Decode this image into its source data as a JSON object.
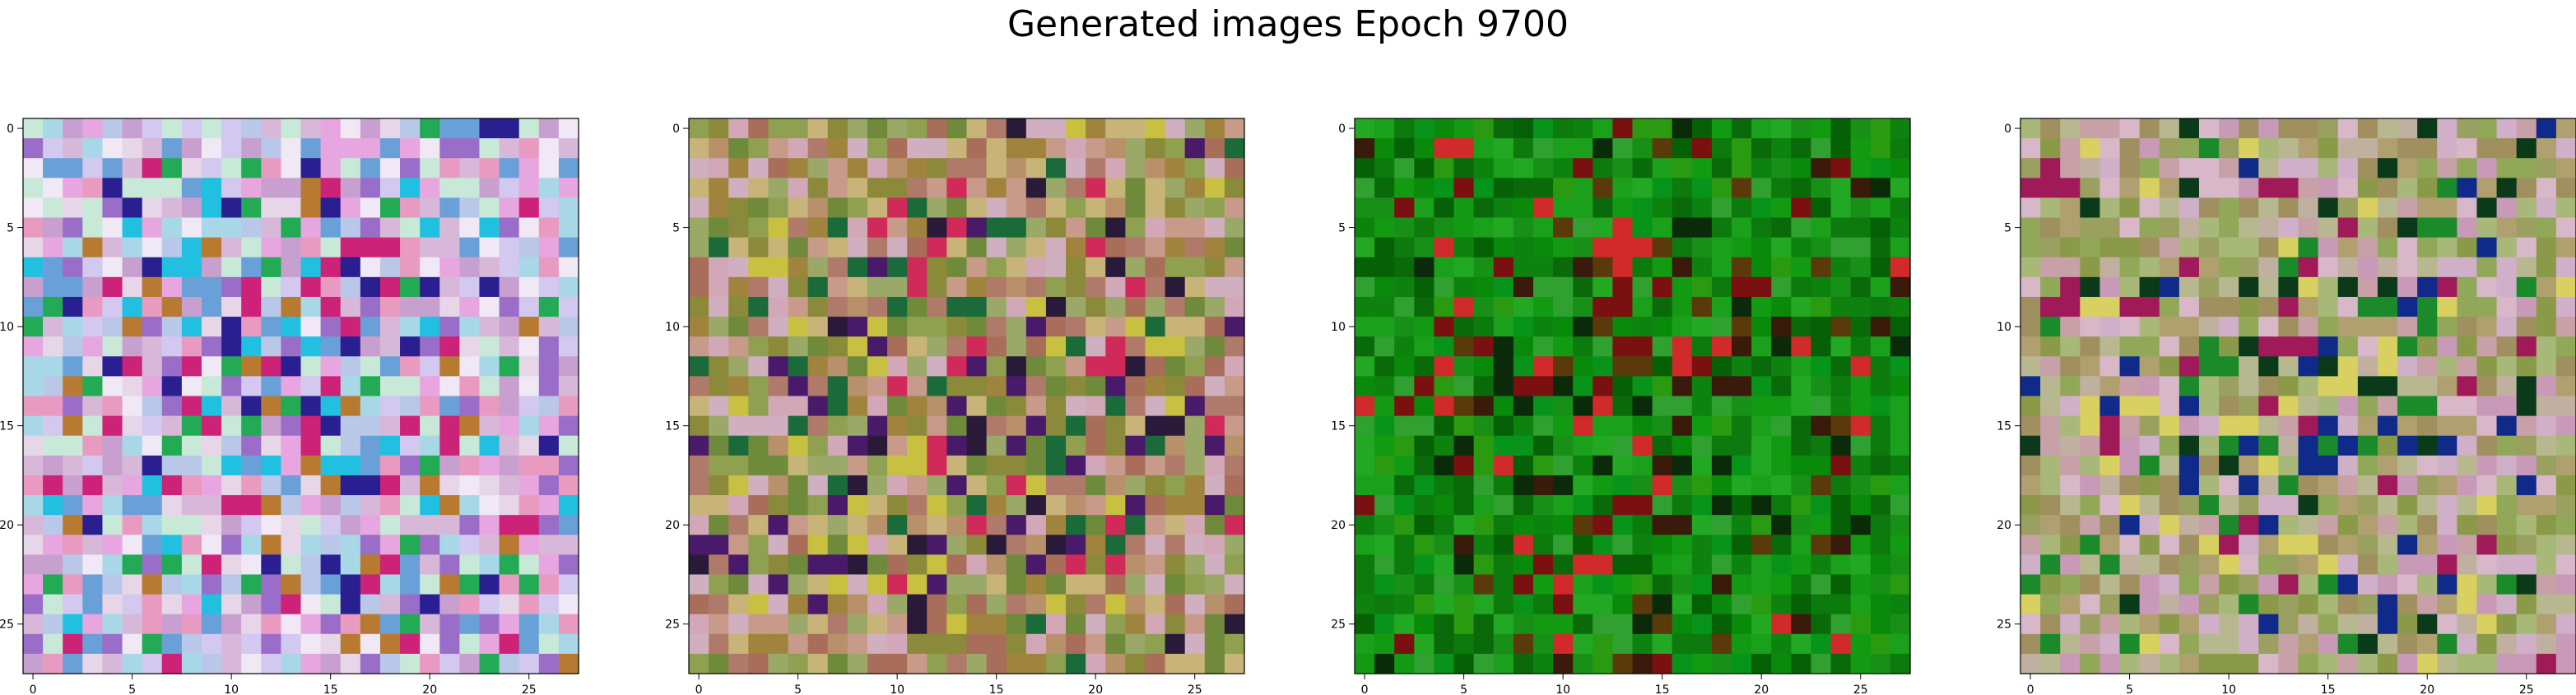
{
  "figure": {
    "title": "Generated images Epoch 9700"
  },
  "chart_data": [
    {
      "type": "heatmap",
      "title": "",
      "xlabel": "",
      "ylabel": "",
      "x_ticks": [
        "0",
        "5",
        "10",
        "15",
        "20",
        "25"
      ],
      "y_ticks": [
        "0",
        "5",
        "10",
        "15",
        "20",
        "25"
      ],
      "grid_size": [
        28,
        28
      ],
      "palette": [
        "#e6d6e8",
        "#d8b8d8",
        "#c8a0d0",
        "#e8a6e0",
        "#b9c8e8",
        "#a8d8e8",
        "#c8e8d8",
        "#f0e8f4",
        "#9a6ec8",
        "#e89ac0",
        "#6aa0d8",
        "#d2c8f0"
      ],
      "accent_colors": [
        "#22aa55",
        "#cc2277",
        "#2a1f90",
        "#22c0e0",
        "#b87a30"
      ]
    },
    {
      "type": "heatmap",
      "title": "",
      "xlabel": "",
      "ylabel": "",
      "x_ticks": [
        "0",
        "5",
        "10",
        "15",
        "20",
        "25"
      ],
      "y_ticks": [
        "0",
        "5",
        "10",
        "15",
        "20",
        "25"
      ],
      "grid_size": [
        28,
        28
      ],
      "palette": [
        "#8a8a3a",
        "#a0843e",
        "#b8906a",
        "#c89a8a",
        "#d2a8b8",
        "#8fa050",
        "#6e8a3a",
        "#c8b478",
        "#b07a6a",
        "#9aa868",
        "#a86e5a",
        "#d0b0c0"
      ],
      "accent_colors": [
        "#2a1a3a",
        "#d02a5a",
        "#1a6a3a",
        "#4a1a6a",
        "#c8c040"
      ]
    },
    {
      "type": "heatmap",
      "title": "",
      "xlabel": "",
      "ylabel": "",
      "x_ticks": [
        "0",
        "5",
        "10",
        "15",
        "20",
        "25"
      ],
      "y_ticks": [
        "0",
        "5",
        "10",
        "15",
        "20",
        "25"
      ],
      "grid_size": [
        28,
        28
      ],
      "palette": [
        "#0a8a0a",
        "#129a12",
        "#0c7a0c",
        "#1aa01a",
        "#0a6a0a",
        "#22a822",
        "#08941a",
        "#2a9a10",
        "#0e820e",
        "#189018",
        "#066006",
        "#30a030"
      ],
      "accent_colors": [
        "#0a2a0a",
        "#7a1010",
        "#d02a2a",
        "#3a1a0a",
        "#5a3a0a"
      ]
    },
    {
      "type": "heatmap",
      "title": "",
      "xlabel": "",
      "ylabel": "",
      "x_ticks": [
        "0",
        "5",
        "10",
        "15",
        "20",
        "25"
      ],
      "y_ticks": [
        "0",
        "5",
        "10",
        "15",
        "20",
        "25"
      ],
      "grid_size": [
        28,
        28
      ],
      "palette": [
        "#9aa060",
        "#b0a070",
        "#c8a0a8",
        "#a8b878",
        "#d0b0c8",
        "#8a9a48",
        "#c89ab8",
        "#b8b890",
        "#a09060",
        "#c0b0a0",
        "#90a858",
        "#d8b8c8"
      ],
      "accent_colors": [
        "#1a8a2a",
        "#0a3a1a",
        "#102a8a",
        "#a01a5a",
        "#d8d060"
      ]
    }
  ]
}
